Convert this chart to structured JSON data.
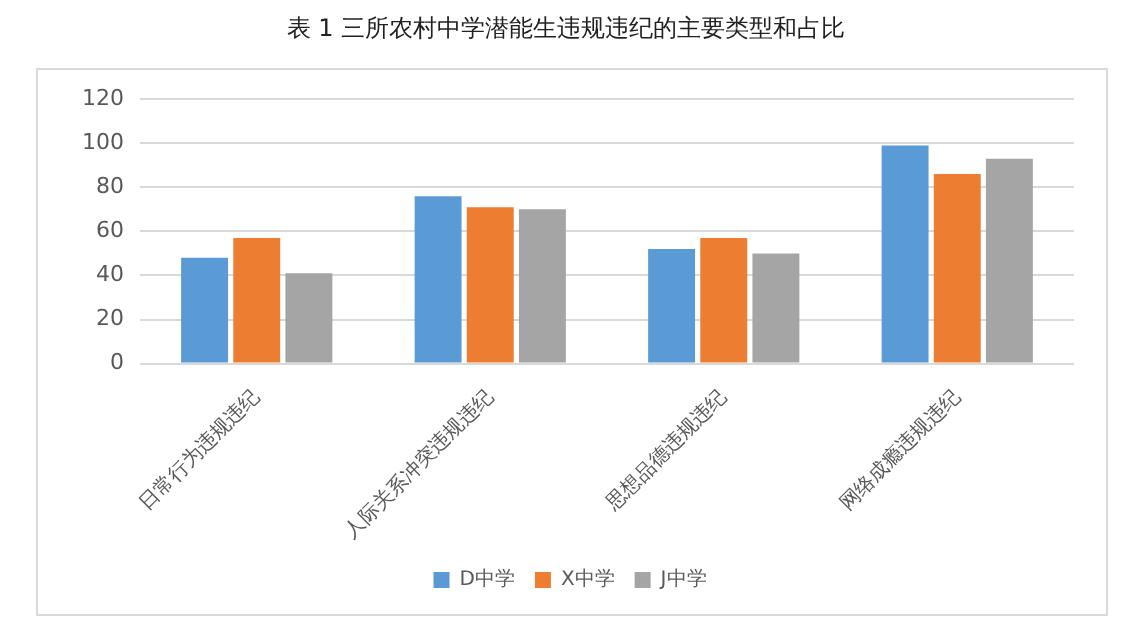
{
  "chart_data": {
    "type": "bar",
    "title": "表 1  三所农村中学潜能生违规违纪的主要类型和占比",
    "categories": [
      "日常行为违规违纪",
      "人际关系冲突违规违纪",
      "思想品德违规违纪",
      "网络成瘾违规违纪"
    ],
    "series": [
      {
        "name": "D中学",
        "color": "#5b9bd5",
        "values": [
          48,
          76,
          52,
          99
        ]
      },
      {
        "name": "X中学",
        "color": "#ed7d31",
        "values": [
          57,
          71,
          57,
          86
        ]
      },
      {
        "name": "J中学",
        "color": "#a5a5a5",
        "values": [
          41,
          70,
          50,
          93
        ]
      }
    ],
    "ylim": [
      0,
      120
    ],
    "yticks": [
      0,
      20,
      40,
      60,
      80,
      100,
      120
    ],
    "grid": "y",
    "legend": "bottom"
  }
}
